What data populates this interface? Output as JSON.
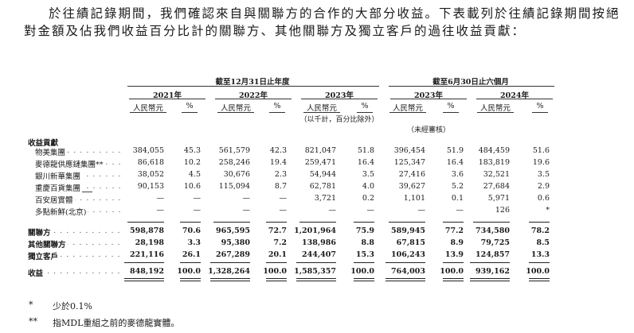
{
  "intro": "於往績記錄期間，我們確認來自與關聯方的合作的大部分收益。下表載列於往績記錄期間按絕對金額及佔我們收益百分比計的關聯方、其他關聯方及獨立客戶的過往收益貢獻：",
  "headers": {
    "group1": "截至12月31日止年度",
    "group2": "截至6月30日止六個月",
    "years": [
      "2021年",
      "2022年",
      "2023年",
      "2023年",
      "2024年"
    ],
    "rmb": "人民幣元",
    "pct": "%",
    "note_thousand": "（以千計，百分比除外）",
    "note_unaudited": "（未經審核）"
  },
  "section_label": "收益貢獻",
  "rows": [
    {
      "label": "物美集團",
      "values": [
        "384,055",
        "45.3",
        "561,579",
        "42.3",
        "821,047",
        "51.8",
        "396,454",
        "51.9",
        "484,459",
        "51.6"
      ]
    },
    {
      "label": "麥德龍供應鏈集團**",
      "values": [
        "86,618",
        "10.2",
        "258,246",
        "19.4",
        "259,471",
        "16.4",
        "125,347",
        "16.4",
        "183,819",
        "19.6"
      ]
    },
    {
      "label": "銀川新華集團",
      "values": [
        "38,052",
        "4.5",
        "30,676",
        "2.3",
        "54,944",
        "3.5",
        "27,416",
        "3.6",
        "32,521",
        "3.5"
      ]
    },
    {
      "label": "重慶百貨集團",
      "values": [
        "90,153",
        "10.6",
        "115,094",
        "8.7",
        "62,781",
        "4.0",
        "39,627",
        "5.2",
        "27,684",
        "2.9"
      ]
    },
    {
      "label": "百安居實體",
      "values": [
        "—",
        "—",
        "—",
        "—",
        "3,721",
        "0.2",
        "1,101",
        "0.1",
        "5,971",
        "0.6"
      ]
    },
    {
      "label": "多點新鮮(北京)",
      "values": [
        "—",
        "—",
        "—",
        "—",
        "—",
        "—",
        "—",
        "—",
        "126",
        "*"
      ]
    }
  ],
  "totals": [
    {
      "label": "關聯方",
      "values": [
        "598,878",
        "70.6",
        "965,595",
        "72.7",
        "1,201,964",
        "75.9",
        "589,945",
        "77.2",
        "734,580",
        "78.2"
      ]
    },
    {
      "label": "其他關聯方",
      "values": [
        "28,198",
        "3.3",
        "95,380",
        "7.2",
        "138,986",
        "8.8",
        "67,815",
        "8.9",
        "79,725",
        "8.5"
      ]
    },
    {
      "label": "獨立客戶",
      "values": [
        "221,116",
        "26.1",
        "267,289",
        "20.1",
        "244,407",
        "15.3",
        "106,243",
        "13.9",
        "124,857",
        "13.3"
      ]
    }
  ],
  "revenue": {
    "label": "收益",
    "values": [
      "848,192",
      "100.0",
      "1,328,264",
      "100.0",
      "1,585,357",
      "100.0",
      "764,003",
      "100.0",
      "939,162",
      "100.0"
    ]
  },
  "footnotes": [
    {
      "mark": "*",
      "text": "少於0.1%"
    },
    {
      "mark": "**",
      "text": "指MDL重組之前的麥德龍實體。"
    }
  ]
}
